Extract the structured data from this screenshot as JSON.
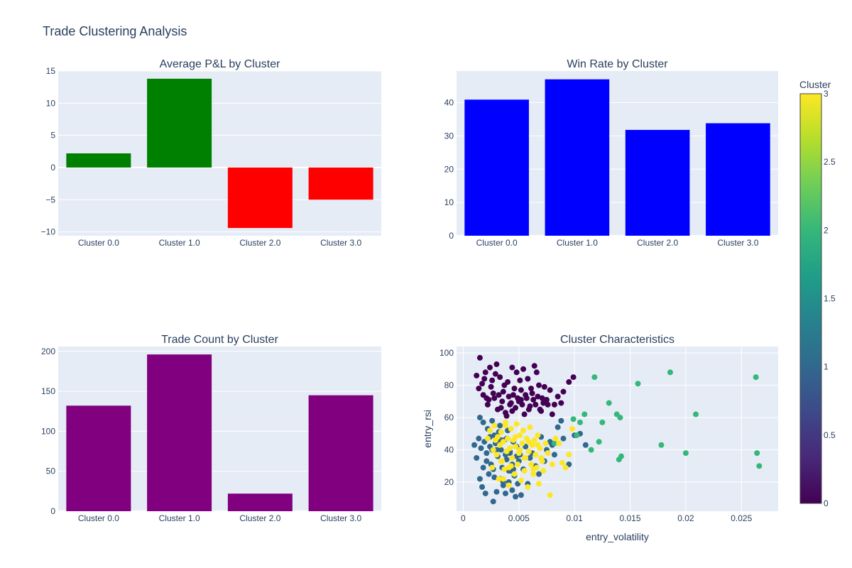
{
  "figure": {
    "title": "Trade Clustering Analysis",
    "colors": {
      "plot_bg": "#E5ECF6",
      "grid": "#ffffff",
      "text": "#2a3f5f"
    }
  },
  "chart_data": [
    {
      "id": "avg_pnl",
      "type": "bar",
      "title": "Average P&L by Cluster",
      "categories": [
        "Cluster 0.0",
        "Cluster 1.0",
        "Cluster 2.0",
        "Cluster 3.0"
      ],
      "values": [
        2.2,
        13.8,
        -9.4,
        -5.0
      ],
      "bar_colors": [
        "#008000",
        "#008000",
        "#FF0000",
        "#FF0000"
      ],
      "ylim": [
        -10.6,
        15
      ],
      "yticks": [
        -10,
        -5,
        0,
        5,
        10,
        15
      ],
      "ytick_labels": [
        "−10",
        "−5",
        "0",
        "5",
        "10",
        "15"
      ],
      "grid": true
    },
    {
      "id": "win_rate",
      "type": "bar",
      "title": "Win Rate by Cluster",
      "categories": [
        "Cluster 0.0",
        "Cluster 1.0",
        "Cluster 2.0",
        "Cluster 3.0"
      ],
      "values": [
        40.9,
        47.0,
        31.8,
        33.8
      ],
      "bar_colors": [
        "#0000FF",
        "#0000FF",
        "#0000FF",
        "#0000FF"
      ],
      "ylim": [
        0,
        49.5
      ],
      "yticks": [
        0,
        10,
        20,
        30,
        40
      ],
      "ytick_labels": [
        "0",
        "10",
        "20",
        "30",
        "40"
      ],
      "grid": true
    },
    {
      "id": "trade_count",
      "type": "bar",
      "title": "Trade Count by Cluster",
      "categories": [
        "Cluster 0.0",
        "Cluster 1.0",
        "Cluster 2.0",
        "Cluster 3.0"
      ],
      "values": [
        132,
        196,
        22,
        145
      ],
      "bar_colors": [
        "#800080",
        "#800080",
        "#800080",
        "#800080"
      ],
      "ylim": [
        0,
        206
      ],
      "yticks": [
        0,
        50,
        100,
        150,
        200
      ],
      "ytick_labels": [
        "0",
        "50",
        "100",
        "150",
        "200"
      ],
      "grid": true
    },
    {
      "id": "characteristics",
      "type": "scatter",
      "title": "Cluster Characteristics",
      "xlabel": "entry_volatility",
      "ylabel": "entry_rsi",
      "xlim": [
        -0.0006,
        0.0283
      ],
      "ylim": [
        2,
        104
      ],
      "xticks": [
        0,
        0.005,
        0.01,
        0.015,
        0.02,
        0.025
      ],
      "xtick_labels": [
        "0",
        "0.005",
        "0.01",
        "0.015",
        "0.02",
        "0.025"
      ],
      "yticks": [
        20,
        40,
        60,
        80,
        100
      ],
      "ytick_labels": [
        "20",
        "40",
        "60",
        "80",
        "100"
      ],
      "grid": true,
      "colorscale": "Viridis",
      "cluster_colors": [
        "#440154",
        "#31688e",
        "#35b779",
        "#fde725"
      ],
      "clusters": [
        {
          "cluster": 0,
          "x": [
            0.0012,
            0.0015,
            0.0018,
            0.002,
            0.0022,
            0.0024,
            0.0025,
            0.0028,
            0.003,
            0.0031,
            0.0033,
            0.0035,
            0.0036,
            0.0038,
            0.004,
            0.0042,
            0.0044,
            0.0045,
            0.0047,
            0.0048,
            0.005,
            0.0052,
            0.0054,
            0.0055,
            0.0057,
            0.0058,
            0.006,
            0.0062,
            0.0064,
            0.0065,
            0.0067,
            0.0068,
            0.007,
            0.0072,
            0.0075,
            0.0078,
            0.008,
            0.0085,
            0.0088,
            0.009,
            0.0095,
            0.0099,
            0.0014,
            0.0019,
            0.0023,
            0.0027,
            0.0029,
            0.0034,
            0.0037,
            0.0041,
            0.0043,
            0.0046,
            0.0049,
            0.0051,
            0.0053,
            0.0056,
            0.0059,
            0.0061,
            0.0063,
            0.0066,
            0.0069,
            0.0071,
            0.0073,
            0.0076,
            0.0082,
            0.0026,
            0.0032,
            0.0039,
            0.0017,
            0.0021,
            0.0044,
            0.0052
          ],
          "y": [
            86,
            97,
            74,
            88,
            68,
            91,
            79,
            72,
            93,
            65,
            85,
            70,
            76,
            63,
            82,
            68,
            91,
            74,
            66,
            88,
            70,
            77,
            90,
            62,
            72,
            84,
            67,
            75,
            92,
            68,
            73,
            80,
            64,
            69,
            71,
            77,
            62,
            73,
            69,
            76,
            82,
            85,
            78,
            84,
            71,
            75,
            87,
            66,
            80,
            73,
            69,
            78,
            72,
            83,
            68,
            74,
            65,
            78,
            71,
            88,
            65,
            72,
            79,
            68,
            68,
            83,
            74,
            61,
            81,
            72,
            64,
            71
          ]
        },
        {
          "cluster": 1,
          "x": [
            0.001,
            0.0012,
            0.0014,
            0.0015,
            0.0016,
            0.0017,
            0.0018,
            0.0019,
            0.002,
            0.0021,
            0.0022,
            0.0023,
            0.0024,
            0.0025,
            0.0026,
            0.0027,
            0.0028,
            0.0029,
            0.003,
            0.0031,
            0.0032,
            0.0033,
            0.0034,
            0.0035,
            0.0036,
            0.0037,
            0.0038,
            0.0039,
            0.004,
            0.0041,
            0.0042,
            0.0043,
            0.0044,
            0.0045,
            0.0046,
            0.0047,
            0.0048,
            0.0049,
            0.005,
            0.0052,
            0.0054,
            0.0056,
            0.0058,
            0.006,
            0.0062,
            0.0065,
            0.0068,
            0.007,
            0.0073,
            0.0075,
            0.0078,
            0.008,
            0.0082,
            0.0085,
            0.0088,
            0.009,
            0.0095,
            0.01,
            0.0105,
            0.011,
            0.0015,
            0.0018,
            0.0021,
            0.0024,
            0.0027,
            0.003,
            0.0033,
            0.0036,
            0.0039,
            0.0042,
            0.0045,
            0.0048,
            0.0051,
            0.0028,
            0.0032,
            0.0038,
            0.0044,
            0.0026,
            0.0034,
            0.0041
          ],
          "y": [
            43,
            35,
            47,
            60,
            41,
            17,
            29,
            45,
            13,
            38,
            53,
            25,
            42,
            31,
            58,
            8,
            23,
            44,
            14,
            36,
            51,
            22,
            40,
            29,
            18,
            46,
            13,
            34,
            52,
            20,
            38,
            27,
            15,
            45,
            24,
            11,
            36,
            19,
            33,
            12,
            28,
            42,
            19,
            35,
            38,
            30,
            25,
            48,
            33,
            40,
            45,
            43,
            37,
            54,
            58,
            47,
            31,
            49,
            50,
            43,
            22,
            57,
            33,
            48,
            28,
            40,
            55,
            20,
            47,
            39,
            28,
            42,
            37,
            49,
            44,
            37,
            31,
            40,
            46,
            27
          ]
        },
        {
          "cluster": 2,
          "x": [
            0.0082,
            0.0099,
            0.0105,
            0.0109,
            0.0115,
            0.0118,
            0.0122,
            0.0131,
            0.0138,
            0.014,
            0.0141,
            0.0142,
            0.0157,
            0.0178,
            0.0186,
            0.02,
            0.0209,
            0.0263,
            0.0264,
            0.0266,
            0.0102,
            0.0125
          ],
          "y": [
            44,
            59,
            57,
            62,
            40,
            85,
            45,
            69,
            62,
            34,
            60,
            36,
            81,
            43,
            88,
            38,
            62,
            85,
            38,
            30,
            49,
            57
          ]
        },
        {
          "cluster": 3,
          "x": [
            0.0022,
            0.0024,
            0.0026,
            0.0028,
            0.003,
            0.0031,
            0.0032,
            0.0033,
            0.0034,
            0.0035,
            0.0036,
            0.0037,
            0.0038,
            0.0039,
            0.004,
            0.0041,
            0.0042,
            0.0043,
            0.0044,
            0.0045,
            0.0046,
            0.0047,
            0.0048,
            0.0049,
            0.005,
            0.0051,
            0.0052,
            0.0053,
            0.0054,
            0.0055,
            0.0056,
            0.0057,
            0.0058,
            0.0059,
            0.006,
            0.0061,
            0.0062,
            0.0063,
            0.0064,
            0.0065,
            0.0066,
            0.0067,
            0.0068,
            0.0069,
            0.007,
            0.0072,
            0.0074,
            0.0076,
            0.0078,
            0.008,
            0.0083,
            0.0086,
            0.0089,
            0.0092,
            0.0095,
            0.0098,
            0.0027,
            0.0029,
            0.0034,
            0.0038,
            0.0043,
            0.0047,
            0.0051,
            0.0055,
            0.0059,
            0.0063,
            0.0067,
            0.0071,
            0.0036,
            0.0041
          ],
          "y": [
            47,
            52,
            29,
            55,
            37,
            48,
            22,
            43,
            51,
            33,
            45,
            28,
            55,
            39,
            47,
            18,
            41,
            53,
            35,
            46,
            25,
            42,
            56,
            31,
            38,
            49,
            21,
            44,
            52,
            27,
            35,
            47,
            17,
            39,
            54,
            31,
            43,
            25,
            46,
            37,
            29,
            49,
            19,
            41,
            35,
            27,
            44,
            38,
            12,
            31,
            47,
            44,
            32,
            29,
            37,
            53,
            40,
            46,
            33,
            57,
            30,
            48,
            40,
            35,
            45,
            28,
            43,
            33,
            22,
            29
          ]
        }
      ],
      "colorbar": {
        "title": "Cluster",
        "range": [
          0,
          3
        ],
        "ticks": [
          0,
          0.5,
          1,
          1.5,
          2,
          2.5,
          3
        ],
        "tick_labels": [
          "0",
          "0.5",
          "1",
          "1.5",
          "2",
          "2.5",
          "3"
        ]
      }
    }
  ]
}
